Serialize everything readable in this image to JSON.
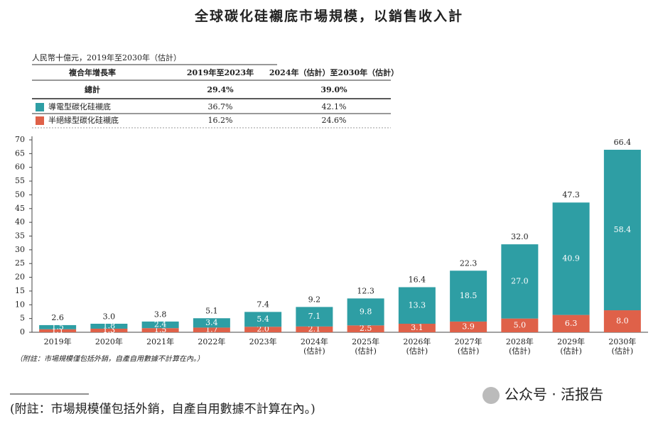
{
  "chart_data": {
    "type": "stacked_bar",
    "title": "全球碳化硅襯底市場規模，以銷售收入計",
    "unit_note": "人民幣十億元，2019年至2030年（估計）",
    "cagr_table": {
      "header": [
        "複合年增長率",
        "2019年至2023年",
        "2024年（估計）至2030年（估計）"
      ],
      "total_row": [
        "總計",
        "29.4%",
        "39.0%"
      ],
      "series_rows": [
        [
          "36.7%",
          "42.1%"
        ],
        [
          "16.2%",
          "24.6%"
        ]
      ]
    },
    "categories": [
      [
        "2019年"
      ],
      [
        "2020年"
      ],
      [
        "2021年"
      ],
      [
        "2022年"
      ],
      [
        "2023年"
      ],
      [
        "2024年",
        "(估計)"
      ],
      [
        "2025年",
        "(估計)"
      ],
      [
        "2026年",
        "(估計)"
      ],
      [
        "2027年",
        "(估計)"
      ],
      [
        "2028年",
        "(估計)"
      ],
      [
        "2029年",
        "(估計)"
      ],
      [
        "2030年",
        "(估計)"
      ]
    ],
    "series": [
      {
        "name": "半絕緣型碳化硅襯底",
        "color": "#df6149",
        "values": [
          1.1,
          1.3,
          1.5,
          1.7,
          2.0,
          2.1,
          2.5,
          3.1,
          3.9,
          5.0,
          6.3,
          8.0
        ],
        "value_labels": [
          "1.1",
          "1.3",
          "1.5",
          "1.7",
          "2.0",
          "2.1",
          "2.5",
          "3.1",
          "3.9",
          "5.0",
          "6.3",
          "8.0"
        ]
      },
      {
        "name": "導電型碳化硅襯底",
        "color": "#2e9ea4",
        "values": [
          1.5,
          1.8,
          2.4,
          3.4,
          5.4,
          7.1,
          9.8,
          13.3,
          18.5,
          27.0,
          40.9,
          58.4
        ],
        "value_labels": [
          "1.5",
          "1.8",
          "2.4",
          "3.4",
          "5.4",
          "7.1",
          "9.8",
          "13.3",
          "18.5",
          "27.0",
          "40.9",
          "58.4"
        ]
      }
    ],
    "totals": {
      "values": [
        2.6,
        3.0,
        3.8,
        5.1,
        7.4,
        9.2,
        12.3,
        16.4,
        22.3,
        32.0,
        47.3,
        66.4
      ],
      "value_labels": [
        "2.6",
        "3.0",
        "3.8",
        "5.1",
        "7.4",
        "9.2",
        "12.3",
        "16.4",
        "22.3",
        "32.0",
        "47.3",
        "66.4"
      ]
    },
    "ylim": [
      0,
      70
    ],
    "yticks": [
      0,
      5,
      10,
      15,
      20,
      25,
      30,
      35,
      40,
      45,
      50,
      55,
      60,
      65,
      70
    ],
    "chart_note": "（附註：市場規模僅包括外銷，自產自用數據不計算在內。）",
    "footnote": "(附註：市場規模僅包括外銷，自產自用數據不計算在內。)",
    "watermark": "公众号 · 活报告"
  }
}
